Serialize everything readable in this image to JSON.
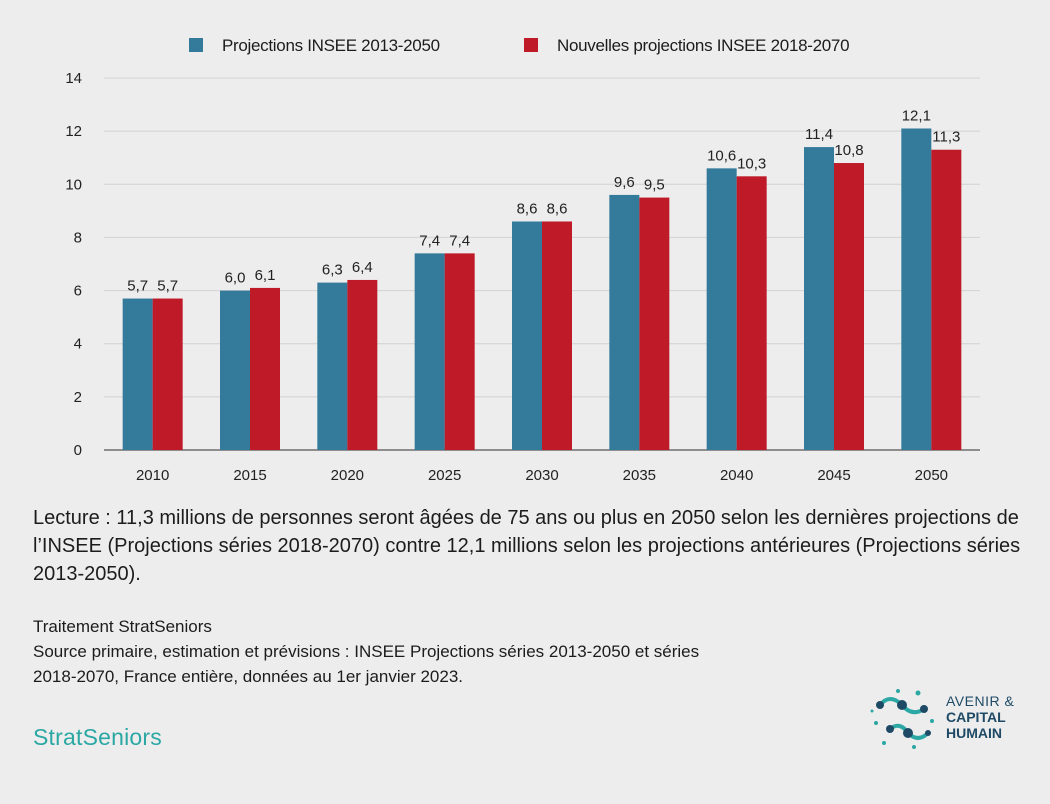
{
  "colors": {
    "series1": "#347a9a",
    "series2": "#be1a28",
    "grid": "#d2d2d2",
    "axis": "#555555",
    "brand": "#2ba7a4",
    "logo_text": "#1f4a66"
  },
  "chart_data": {
    "type": "bar",
    "categories": [
      "2010",
      "2015",
      "2020",
      "2025",
      "2030",
      "2035",
      "2040",
      "2045",
      "2050"
    ],
    "series": [
      {
        "name": "Projections INSEE 2013-2050",
        "values": [
          5.7,
          6.0,
          6.3,
          7.4,
          8.6,
          9.6,
          10.6,
          11.4,
          12.1
        ],
        "labels": [
          "5,7",
          "6,0",
          "6,3",
          "7,4",
          "8,6",
          "9,6",
          "10,6",
          "11,4",
          "12,1"
        ]
      },
      {
        "name": "Nouvelles projections INSEE 2018-2070",
        "values": [
          5.7,
          6.1,
          6.4,
          7.4,
          8.6,
          9.5,
          10.3,
          10.8,
          11.3
        ],
        "labels": [
          "5,7",
          "6,1",
          "6,4",
          "7,4",
          "8,6",
          "9,5",
          "10,3",
          "10,8",
          "11,3"
        ]
      }
    ],
    "ylim": [
      0,
      14
    ],
    "yticks": [
      "0",
      "2",
      "4",
      "6",
      "8",
      "10",
      "12",
      "14"
    ],
    "grid": true,
    "legend_position": "top"
  },
  "text": {
    "reading": "Lecture : 11,3 millions de personnes seront âgées de 75 ans ou plus en 2050 selon les dernières projections de l’INSEE (Projections séries 2018-2070) contre 12,1 millions selon les projections antérieures (Projections séries 2013-2050).",
    "treatment": "Traitement StratSeniors",
    "source_line1": "Source primaire, estimation et prévisions : INSEE Projections séries 2013-2050 et séries",
    "source_line2": "2018-2070, France entière, données au 1er janvier 2023.",
    "brand": "StratSeniors",
    "logo_line1": "AVENIR &",
    "logo_line2": "CAPITAL",
    "logo_line3": "HUMAIN"
  }
}
